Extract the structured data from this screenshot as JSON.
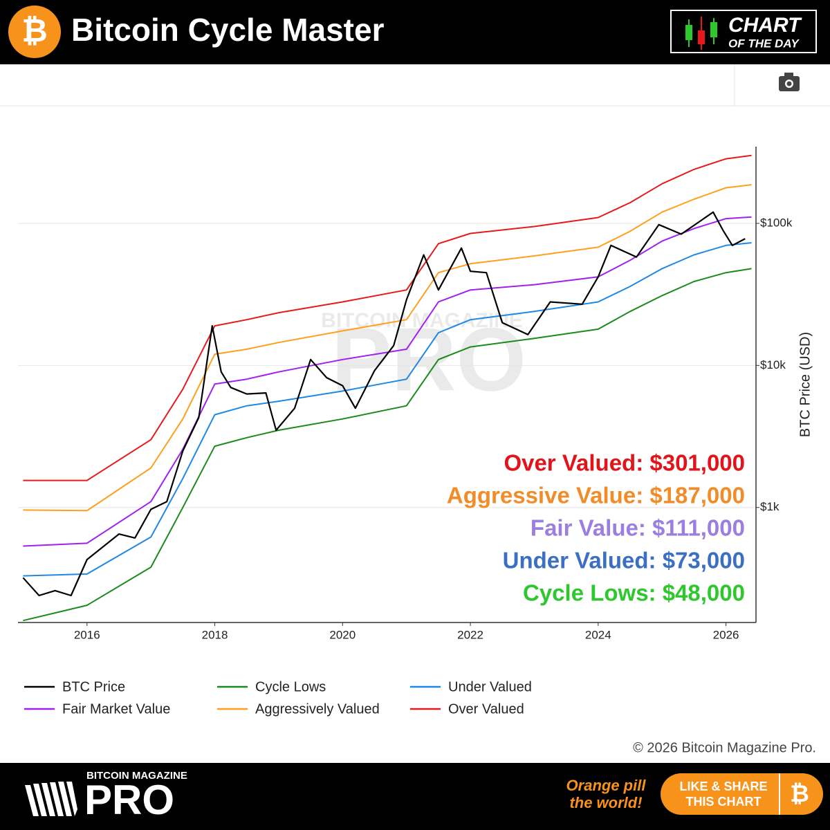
{
  "header": {
    "title": "Bitcoin Cycle Master",
    "badge_line1": "CHART",
    "badge_line2": "OF THE DAY"
  },
  "chart_data": {
    "type": "line",
    "y_label": "BTC Price (USD)",
    "log_scale": true,
    "grid": true,
    "legend": "bottom",
    "watermark": [
      "BITCOIN MAGAZINE",
      "PRO"
    ],
    "xlim": [
      2014.92,
      2026.47
    ],
    "xticks": [
      2016,
      2018,
      2020,
      2022,
      2024,
      2026
    ],
    "ylim": [
      155,
      347000
    ],
    "yticks": [
      {
        "value": 1000,
        "label": "$1k"
      },
      {
        "value": 10000,
        "label": "$10k"
      },
      {
        "value": 100000,
        "label": "$100k"
      }
    ],
    "series": [
      {
        "name": "BTC Price",
        "color": "#000000",
        "x": [
          2015.0,
          2015.25,
          2015.5,
          2015.75,
          2016.0,
          2016.5,
          2016.75,
          2017.0,
          2017.25,
          2017.5,
          2017.75,
          2017.96,
          2018.1,
          2018.25,
          2018.5,
          2018.8,
          2018.96,
          2019.25,
          2019.5,
          2019.75,
          2020.0,
          2020.2,
          2020.5,
          2020.8,
          2021.0,
          2021.27,
          2021.5,
          2021.86,
          2022.0,
          2022.25,
          2022.5,
          2022.9,
          2023.25,
          2023.75,
          2024.0,
          2024.2,
          2024.6,
          2024.95,
          2025.3,
          2025.8,
          2025.95,
          2026.1,
          2026.3
        ],
        "values": [
          320,
          240,
          260,
          240,
          430,
          650,
          610,
          970,
          1100,
          2500,
          4300,
          19000,
          9000,
          7000,
          6300,
          6400,
          3500,
          5000,
          11000,
          8200,
          7200,
          5000,
          9200,
          13800,
          29000,
          60000,
          34000,
          67000,
          46000,
          45000,
          20000,
          16500,
          28000,
          27000,
          42000,
          70000,
          58000,
          98000,
          84000,
          120000,
          90000,
          70000,
          78000
        ]
      },
      {
        "name": "Cycle Lows",
        "color": "#1a8a1a",
        "x": [
          2015.0,
          2016.0,
          2017.0,
          2017.5,
          2018.0,
          2018.5,
          2019.0,
          2020.0,
          2021.0,
          2021.5,
          2022.0,
          2023.0,
          2024.0,
          2024.5,
          2025.0,
          2025.5,
          2026.0,
          2026.4
        ],
        "values": [
          160,
          205,
          380,
          1000,
          2700,
          3100,
          3500,
          4200,
          5200,
          11000,
          13500,
          15500,
          18000,
          24000,
          31000,
          39000,
          45000,
          48000
        ]
      },
      {
        "name": "Under Valued",
        "color": "#1e88e5",
        "x": [
          2015.0,
          2016.0,
          2017.0,
          2017.5,
          2018.0,
          2018.5,
          2019.0,
          2020.0,
          2021.0,
          2021.5,
          2022.0,
          2023.0,
          2024.0,
          2024.5,
          2025.0,
          2025.5,
          2026.0,
          2026.4
        ],
        "values": [
          330,
          340,
          620,
          1600,
          4500,
          5200,
          5600,
          6600,
          8000,
          17000,
          21000,
          24000,
          28000,
          36000,
          48000,
          60000,
          70000,
          73000
        ]
      },
      {
        "name": "Fair Market Value",
        "color": "#a020f0",
        "x": [
          2015.0,
          2016.0,
          2017.0,
          2017.5,
          2018.0,
          2018.5,
          2019.0,
          2020.0,
          2021.0,
          2021.5,
          2022.0,
          2023.0,
          2024.0,
          2024.5,
          2025.0,
          2025.5,
          2026.0,
          2026.4
        ],
        "values": [
          535,
          560,
          1100,
          2570,
          7400,
          8000,
          9000,
          11000,
          13000,
          28000,
          34000,
          37000,
          42000,
          55000,
          75000,
          92000,
          108000,
          111000
        ]
      },
      {
        "name": "Aggressively Valued",
        "color": "#ff9f1c",
        "x": [
          2015.0,
          2016.0,
          2017.0,
          2017.5,
          2018.0,
          2018.5,
          2019.0,
          2020.0,
          2021.0,
          2021.5,
          2022.0,
          2023.0,
          2024.0,
          2024.5,
          2025.0,
          2025.5,
          2026.0,
          2026.4
        ],
        "values": [
          960,
          950,
          1900,
          4200,
          12000,
          13000,
          14500,
          17500,
          21000,
          45000,
          52000,
          59000,
          68000,
          88000,
          120000,
          148000,
          178000,
          187000
        ]
      },
      {
        "name": "Over Valued",
        "color": "#e8191a",
        "x": [
          2015.0,
          2016.0,
          2017.0,
          2017.5,
          2018.0,
          2018.5,
          2019.0,
          2020.0,
          2021.0,
          2021.5,
          2022.0,
          2023.0,
          2024.0,
          2024.5,
          2025.0,
          2025.5,
          2026.0,
          2026.4
        ],
        "values": [
          1550,
          1550,
          3000,
          6800,
          19000,
          21000,
          23500,
          28000,
          34000,
          72000,
          85000,
          95000,
          110000,
          140000,
          190000,
          240000,
          285000,
          301000
        ]
      }
    ],
    "annotations": [
      {
        "text": "Over Valued: $301,000",
        "color": "#e0141a"
      },
      {
        "text": "Aggressive Value: $187,000",
        "color": "#f28c28"
      },
      {
        "text": "Fair Value: $111,000",
        "color": "#9b7ee0"
      },
      {
        "text": "Under Valued: $73,000",
        "color": "#3a6fc4"
      },
      {
        "text": "Cycle Lows: $48,000",
        "color": "#2ec72e"
      }
    ],
    "copyright": "© 2026 Bitcoin Magazine Pro."
  },
  "footer": {
    "brand_small": "BITCOIN MAGAZINE",
    "brand_big": "PRO",
    "slogan": [
      "Orange pill",
      "the world!"
    ],
    "button": [
      "LIKE & SHARE",
      "THIS CHART"
    ]
  }
}
